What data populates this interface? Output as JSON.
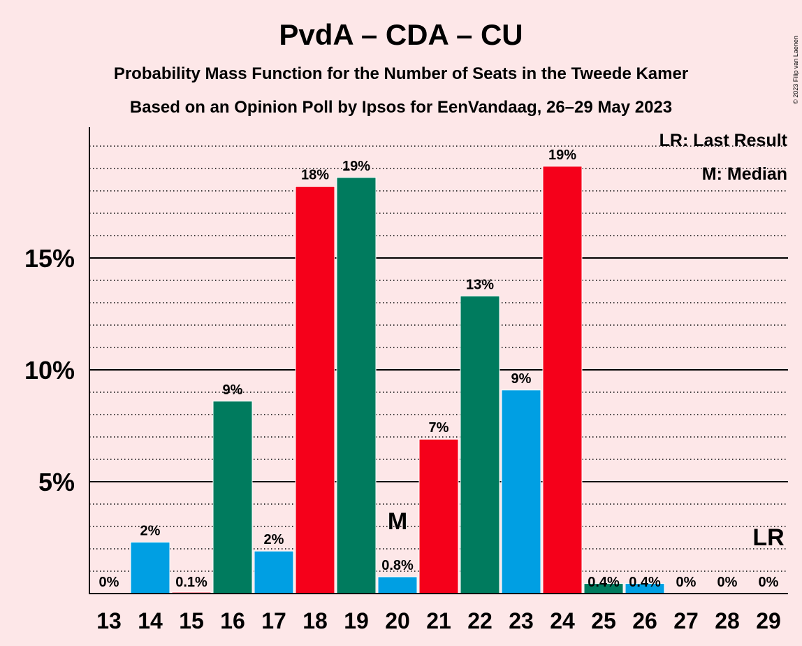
{
  "chart_data": {
    "type": "bar",
    "title": "PvdA – CDA – CU",
    "subtitle1": "Probability Mass Function for the Number of Seats in the Tweede Kamer",
    "subtitle2": "Based on an Opinion Poll by Ipsos for EenVandaag, 26–29 May 2023",
    "copyright": "© 2023 Filip van Laenen",
    "legend": {
      "lr": "LR: Last Result",
      "m": "M: Median",
      "placement": "top-right"
    },
    "categories": [
      "13",
      "14",
      "15",
      "16",
      "17",
      "18",
      "19",
      "20",
      "21",
      "22",
      "23",
      "24",
      "25",
      "26",
      "27",
      "28",
      "29"
    ],
    "values": [
      0,
      2.3,
      0.06,
      8.6,
      1.9,
      18.2,
      18.6,
      0.75,
      6.9,
      13.3,
      9.1,
      19.1,
      0.45,
      0.45,
      0,
      0,
      0
    ],
    "labels": [
      "0%",
      "2%",
      "0.1%",
      "9%",
      "2%",
      "18%",
      "19%",
      "0.8%",
      "7%",
      "13%",
      "9%",
      "19%",
      "0.4%",
      "0.4%",
      "0%",
      "0%",
      "0%"
    ],
    "bar_colors": [
      "#009fe3",
      "#009fe3",
      "#e9001e",
      "#007b5e",
      "#009fe3",
      "#f5001a",
      "#007b5e",
      "#009fe3",
      "#f5001a",
      "#007b5e",
      "#009fe3",
      "#f5001a",
      "#007b5e",
      "#009fe3",
      "#009fe3",
      "#009fe3",
      "#009fe3"
    ],
    "yticks": [
      {
        "value": 5,
        "label": "5%"
      },
      {
        "value": 10,
        "label": "10%"
      },
      {
        "value": 15,
        "label": "15%"
      }
    ],
    "ylim": [
      0,
      20.7
    ],
    "minor_grid_step": 1,
    "grid": true,
    "median": {
      "category": "20",
      "marker": "M"
    },
    "last_result": {
      "category": "29",
      "marker": "LR"
    }
  }
}
